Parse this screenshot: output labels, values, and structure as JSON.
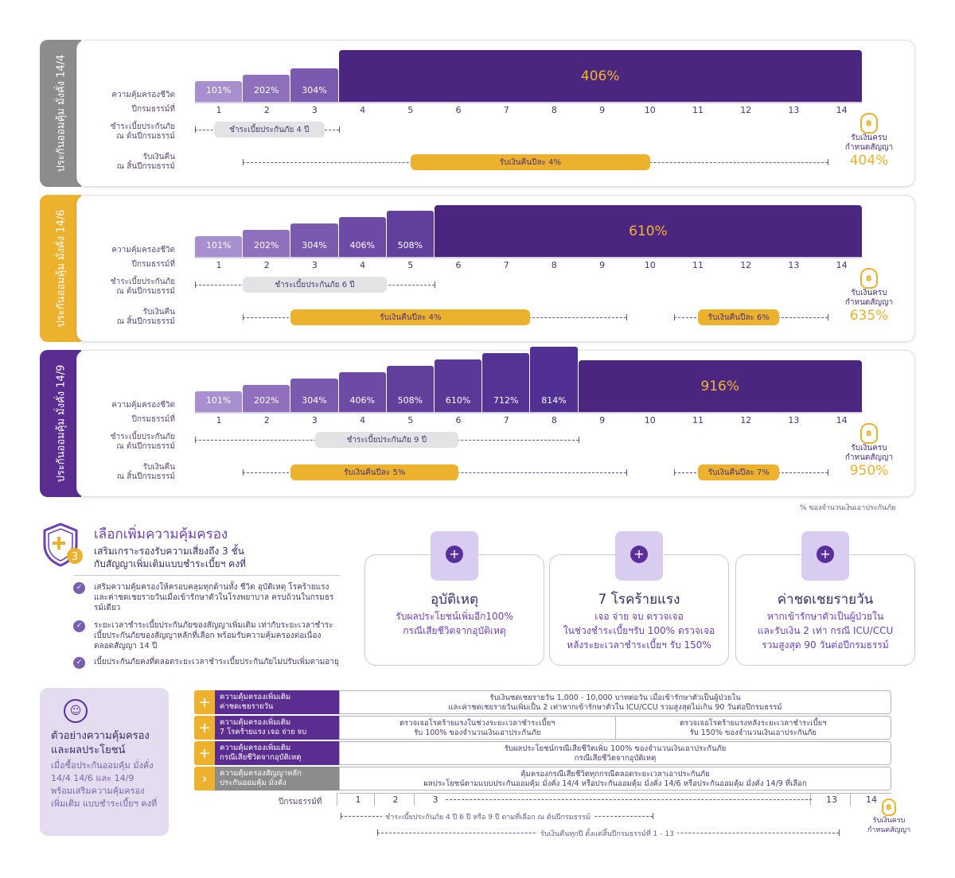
{
  "plans": [
    {
      "tab": "ประกันออมคุ้ม มั่งคั่ง 14/4",
      "steps": [
        "101%",
        "202%",
        "304%"
      ],
      "big": "406%",
      "pay_label": "ชำระเบี้ยประกันภัย 4 ปี",
      "refund1": "รับเงินคืนปีละ 4%",
      "refund2": "",
      "maturity_pct": "404%"
    },
    {
      "tab": "ประกันออมคุ้ม มั่งคั่ง 14/6",
      "steps": [
        "101%",
        "202%",
        "304%",
        "406%",
        "508%"
      ],
      "big": "610%",
      "pay_label": "ชำระเบี้ยประกันภัย 6 ปี",
      "refund1": "รับเงินคืนปีละ 4%",
      "refund2": "รับเงินคืนปีละ 6%",
      "maturity_pct": "635%"
    },
    {
      "tab": "ประกันออมคุ้ม มั่งคั่ง 14/9",
      "steps": [
        "101%",
        "202%",
        "304%",
        "406%",
        "508%",
        "610%",
        "712%",
        "814%"
      ],
      "big": "916%",
      "pay_label": "ชำระเบี้ยประกันภัย 9 ปี",
      "refund1": "รับเงินคืนปีละ 5%",
      "refund2": "รับเงินคืนปีละ 7%",
      "maturity_pct": "950%"
    }
  ],
  "labels": {
    "coverage": "ความคุ้มครองชีวิต",
    "policy_year": "ปีกรมธรรม์ที่",
    "pay_1": "ชำระเบี้ยประกันภัย",
    "pay_2": "ณ ต้นปีกรมธรรม์",
    "refund_1": "รับเงินคืน",
    "refund_2": "ณ สิ้นปีกรมธรรม์",
    "maturity_1": "รับเงินครบ",
    "maturity_2": "กำหนดสัญญา",
    "years": [
      "1",
      "2",
      "3",
      "4",
      "5",
      "6",
      "7",
      "8",
      "9",
      "10",
      "11",
      "12",
      "13",
      "14"
    ],
    "footnote": "% ของจำนวนเงินเอาประกันภัย",
    "bag": "฿"
  },
  "riders": {
    "title": "เลือกเพิ่มความคุ้มครอง",
    "sub1": "เสริมเกราะรองรับความเสี่ยงถึง 3 ชั้น",
    "sub2": "กับสัญญาเพิ่มเติมแบบชำระเบี้ยฯ คงที่",
    "shield_num": "3",
    "bullets": [
      "เสริมความคุ้มครองให้ครอบคลุมทุกด้านทั้ง ชีวิต อุบัติเหตุ โรคร้ายแรง และค่าชดเชยรายวันเมื่อเข้ารักษาตัวในโรงพยาบาล ครบถ้วนในกรมธรรม์เดียว",
      "ระยะเวลาชำระเบี้ยประกันภัยของสัญญาเพิ่มเติม เท่ากับระยะเวลาชำระเบี้ยประกันภัยของสัญญาหลักที่เลือก พร้อมรับความคุ้มครองต่อเนื่องตลอดสัญญา 14 ปี",
      "เบี้ยประกันภัยคงที่ตลอดระยะเวลาชำระเบี้ยประกันภัยไม่ปรับเพิ่มตามอายุ"
    ],
    "check": "✓",
    "cards": [
      {
        "title": "อุบัติเหตุ",
        "d1": "รับผลประโยชน์เพิ่มอีก100%",
        "d2": "กรณีเสียชีวิตจากอุบัติเหตุ",
        "d3": "",
        "icon": "✸"
      },
      {
        "title": "7 โรคร้ายแรง",
        "d1": "เจอ จ่าย จบ ตรวจเจอ",
        "d2": "ในช่วงชำระเบี้ยฯรับ 100% ตรวจเจอ",
        "d3": "หลังระยะเวลาชำระเบี้ยฯ รับ 150%",
        "icon": "✺"
      },
      {
        "title": "ค่าชดเชยรายวัน",
        "d1": "หากเข้ารักษาตัวเป็นผู้ป่วยใน",
        "d2": "และรับเงิน 2 เท่า กรณี ICU/CCU",
        "d3": "รวมสูงสุด 90 วันต่อปีกรมธรรม์",
        "icon": "⊕"
      }
    ],
    "plus": "+"
  },
  "example": {
    "title": "ตัวอย่างความคุ้มครอง และผลประโยชน์",
    "desc": "เมื่อซื้อประกันออมคุ้ม มั่งคั่ง 14/4 14/6 และ 14/9 พร้อมเสริมความคุ้มครองเพิ่มเติม แบบชำระเบี้ยฯ คงที่",
    "icon": "☺",
    "rows": [
      {
        "btn": "+",
        "l1": "ความคุ้มครองเพิ่มเติม",
        "l2": "ค่าชดเชยรายวัน",
        "v1": "รับเงินชดเชยรายวัน 1,000 - 10,000 บาทต่อวัน เมื่อเข้ารักษาตัวเป็นผู้ป่วยใน",
        "v2": "และค่าชดเชยรายวันเพิ่มเป็น 2 เท่าหากเข้ารักษาตัวใน ICU/CCU รวมสูงสุดไม่เกิน 90 วันต่อปีกรมธรรม์"
      },
      {
        "btn": "+",
        "l1": "ความคุ้มครองเพิ่มเติม",
        "l2": "7 โรคร้ายแรง เจอ จ่าย จบ",
        "v1a": "ตรวจเจอโรคร้ายแรงในช่วงระยะเวลาชำระเบี้ยฯ",
        "v2a": "รับ 100% ของจำนวนเงินเอาประกันภัย",
        "v1b": "ตรวจเจอโรคร้ายแรงหลังระยะเวลาชำระเบี้ยฯ",
        "v2b": "รับ 150% ของจำนวนเงินเอาประกันภัย"
      },
      {
        "btn": "+",
        "l1": "ความคุ้มครองเพิ่มเติม",
        "l2": "กรณีเสียชีวิตจากอุบัติเหตุ",
        "v1": "รับผลประโยชน์กรณีเสียชีวิตเพิ่ม 100% ของจำนวนเงินเอาประกันภัย",
        "v2": "กรณีเสียชีวิตจากอุบัติเหตุ"
      },
      {
        "btn": "›",
        "l1": "ความคุ้มครองสัญญาหลัก",
        "l2": "ประกันออมคุ้ม มั่งคั่ง",
        "v1": "คุ้มครองกรณีเสียชีวิตทุกกรณีตลอดระยะเวลาเอาประกันภัย",
        "v2": "ผลประโยชน์ตามแบบประกันออมคุ้ม มั่งคั่ง 14/4 หรือประกันออมคุ้ม มั่งคั่ง 14/6 หรือประกันออมคุ้ม มั่งคั่ง 14/9 ที่เลือก"
      }
    ],
    "year_label": "ปีกรมธรรม์ที่",
    "years": [
      "1",
      "2",
      "3",
      "13",
      "14"
    ],
    "pay": "ชำระเบี้ยประกันภัย 4 ปี 6 ปี หรือ 9 ปี ตามที่เลือก ณ ต้นปีกรมธรรม์",
    "refund": "รับเงินคืนทุกปี ตั้งแต่สิ้นปีกรมธรรม์ที่ 1 - 13",
    "mat1": "รับเงินครบ",
    "mat2": "กำหนดสัญญา"
  },
  "colors": {
    "purple": "#5b2d90",
    "gold": "#ecb12d",
    "grey_tab": "#8c8c8c"
  }
}
